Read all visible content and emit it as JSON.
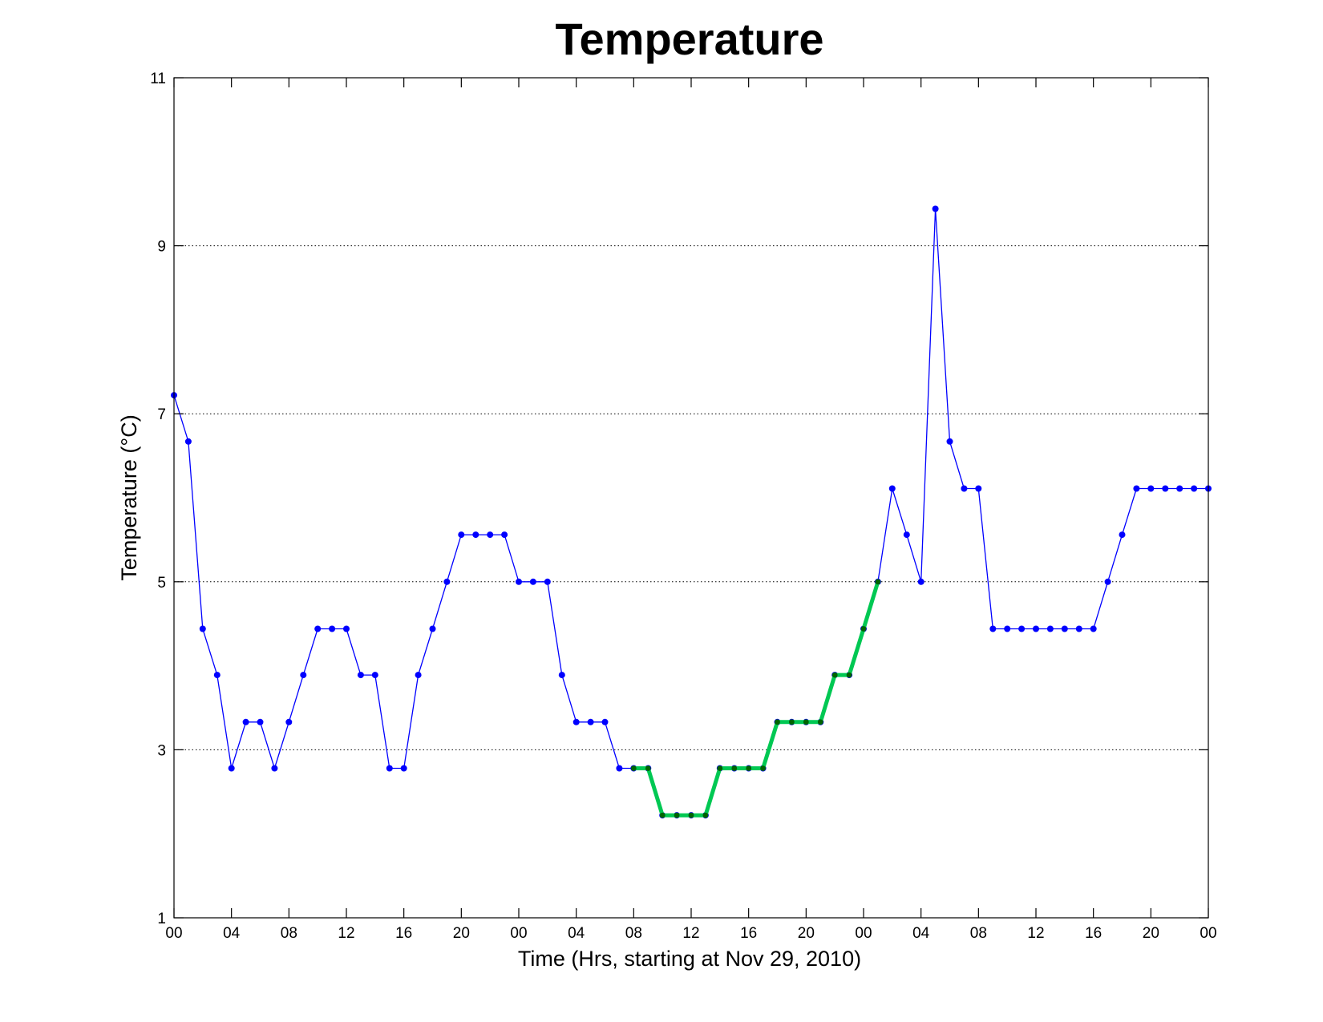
{
  "chart_data": {
    "type": "line",
    "title": "Temperature",
    "xlabel": "Time (Hrs, starting at Nov 29, 2010)",
    "ylabel": "Temperature (°C)",
    "xlim": [
      0,
      72
    ],
    "ylim": [
      1,
      11
    ],
    "grid": "y-dotted",
    "x_tick_values": [
      0,
      4,
      8,
      12,
      16,
      20,
      24,
      28,
      32,
      36,
      40,
      44,
      48,
      52,
      56,
      60,
      64,
      68,
      72
    ],
    "x_tick_labels": [
      "00",
      "04",
      "08",
      "12",
      "16",
      "20",
      "00",
      "04",
      "08",
      "12",
      "16",
      "20",
      "00",
      "04",
      "08",
      "12",
      "16",
      "20",
      "00"
    ],
    "y_ticks": [
      1,
      3,
      5,
      7,
      9,
      11
    ],
    "series": [
      {
        "color": "#0000ff",
        "marker": "dot",
        "x": [
          0,
          1,
          2,
          3,
          4,
          5,
          6,
          7,
          8,
          9,
          10,
          11,
          12,
          13,
          14,
          15,
          16,
          17,
          18,
          19,
          20,
          21,
          22,
          23,
          24,
          25,
          26,
          27,
          28,
          29,
          30,
          31,
          32,
          33,
          34,
          35,
          36,
          37,
          38,
          39,
          40,
          41,
          42,
          43,
          44,
          45,
          46,
          47,
          48,
          49,
          50,
          51,
          52,
          53,
          54,
          55,
          56,
          57,
          58,
          59,
          60,
          61,
          62,
          63,
          64,
          65,
          66,
          67,
          68,
          69,
          70,
          71,
          72
        ],
        "y": [
          7.22,
          6.67,
          4.44,
          3.89,
          2.78,
          3.33,
          3.33,
          2.78,
          3.33,
          3.89,
          4.44,
          4.44,
          4.44,
          3.89,
          3.89,
          2.78,
          2.78,
          3.89,
          4.44,
          5.0,
          5.56,
          5.56,
          5.56,
          5.56,
          5.0,
          5.0,
          5.0,
          3.89,
          3.33,
          3.33,
          3.33,
          2.78,
          2.78,
          2.78,
          2.22,
          2.22,
          2.22,
          2.22,
          2.78,
          2.78,
          2.78,
          2.78,
          3.33,
          3.33,
          3.33,
          3.33,
          3.89,
          3.89,
          4.44,
          5.0,
          6.11,
          5.56,
          5.0,
          9.44,
          6.67,
          6.11,
          6.11,
          4.44,
          4.44,
          4.44,
          4.44,
          4.44,
          4.44,
          4.44,
          4.44,
          5.0,
          5.56,
          6.11,
          6.11,
          6.11,
          6.11,
          6.11,
          6.11
        ]
      },
      {
        "color": "#00c853",
        "marker_color": "#006400",
        "highlight": true,
        "x": [
          32,
          33,
          34,
          35,
          36,
          37,
          38,
          39,
          40,
          41,
          42,
          43,
          44,
          45,
          46,
          47,
          48,
          49
        ],
        "y": [
          2.78,
          2.78,
          2.22,
          2.22,
          2.22,
          2.22,
          2.78,
          2.78,
          2.78,
          2.78,
          3.33,
          3.33,
          3.33,
          3.33,
          3.89,
          3.89,
          4.44,
          5.0
        ]
      }
    ]
  }
}
